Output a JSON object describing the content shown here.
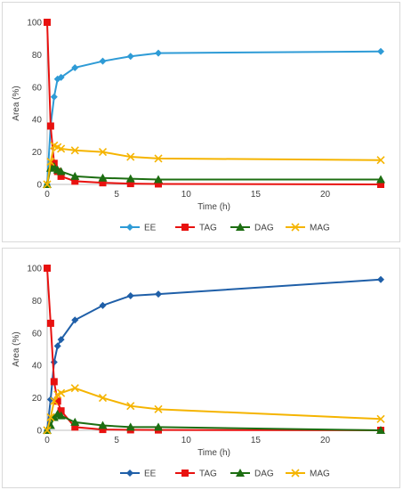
{
  "chart_data": [
    {
      "type": "line",
      "title": "",
      "xlabel": "Time (h)",
      "ylabel": "Area (%)",
      "xlim": [
        0,
        24
      ],
      "ylim": [
        0,
        100
      ],
      "x_ticks": [
        0,
        5,
        10,
        15,
        20
      ],
      "y_ticks": [
        0,
        20,
        40,
        60,
        80,
        100
      ],
      "grid": false,
      "legend_position": "bottom",
      "series": [
        {
          "name": "EE",
          "color": "#2E9BD6",
          "marker": "diamond",
          "x": [
            0,
            0.25,
            0.5,
            0.75,
            1,
            2,
            4,
            6,
            8,
            24
          ],
          "y": [
            0,
            36,
            54,
            65,
            66,
            72,
            76,
            79,
            81,
            82
          ]
        },
        {
          "name": "TAG",
          "color": "#E8110F",
          "marker": "square",
          "x": [
            0,
            0.25,
            0.5,
            0.75,
            1,
            2,
            4,
            6,
            8,
            24
          ],
          "y": [
            100,
            36,
            13,
            8,
            5,
            2,
            1,
            0.5,
            0.3,
            0
          ]
        },
        {
          "name": "DAG",
          "color": "#1D6E12",
          "marker": "triangle",
          "x": [
            0,
            0.25,
            0.5,
            0.75,
            1,
            2,
            4,
            6,
            8,
            24
          ],
          "y": [
            0,
            10,
            11,
            9,
            8,
            5,
            4,
            3.5,
            3,
            3
          ]
        },
        {
          "name": "MAG",
          "color": "#F5B400",
          "marker": "x",
          "x": [
            0,
            0.25,
            0.5,
            0.75,
            1,
            2,
            4,
            6,
            8,
            24
          ],
          "y": [
            0,
            14,
            24,
            23,
            22,
            21,
            20,
            17,
            16,
            15
          ]
        }
      ]
    },
    {
      "type": "line",
      "title": "",
      "xlabel": "Time (h)",
      "ylabel": "Area (%)",
      "xlim": [
        0,
        24
      ],
      "ylim": [
        0,
        100
      ],
      "x_ticks": [
        0,
        5,
        10,
        15,
        20
      ],
      "y_ticks": [
        0,
        20,
        40,
        60,
        80,
        100
      ],
      "grid": false,
      "legend_position": "bottom",
      "series": [
        {
          "name": "EE",
          "color": "#1F5FA8",
          "marker": "diamond",
          "x": [
            0,
            0.25,
            0.5,
            0.75,
            1,
            2,
            4,
            6,
            8,
            24
          ],
          "y": [
            0,
            19,
            42,
            52,
            56,
            68,
            77,
            83,
            84,
            93
          ]
        },
        {
          "name": "TAG",
          "color": "#E8110F",
          "marker": "square",
          "x": [
            0,
            0.25,
            0.5,
            0.75,
            1,
            2,
            4,
            6,
            8,
            24
          ],
          "y": [
            100,
            66,
            30,
            18,
            12,
            2,
            0.5,
            0.3,
            0.2,
            0
          ]
        },
        {
          "name": "DAG",
          "color": "#1D6E12",
          "marker": "triangle",
          "x": [
            0,
            0.25,
            0.5,
            0.75,
            1,
            2,
            4,
            6,
            8,
            24
          ],
          "y": [
            0,
            3,
            8,
            10,
            9,
            5,
            3,
            2,
            2,
            0
          ]
        },
        {
          "name": "MAG",
          "color": "#F5B400",
          "marker": "x",
          "x": [
            0,
            0.25,
            0.5,
            0.75,
            1,
            2,
            4,
            6,
            8,
            24
          ],
          "y": [
            0,
            8,
            18,
            22,
            23,
            26,
            20,
            15,
            13,
            7
          ]
        }
      ]
    }
  ]
}
